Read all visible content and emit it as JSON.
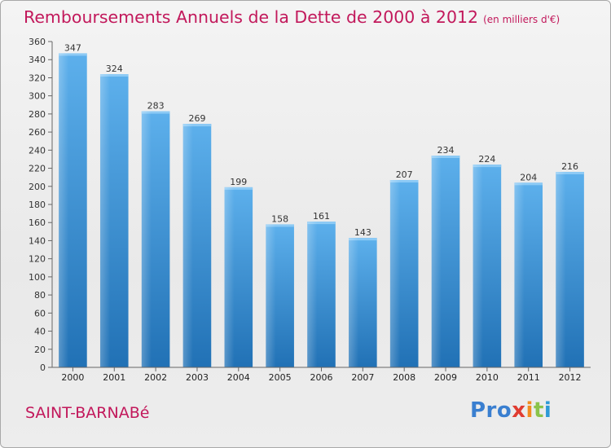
{
  "chart_data": {
    "type": "bar",
    "title": "Remboursements Annuels de la Dette de 2000 à 2012",
    "subtitle": "(en milliers d'€)",
    "categories": [
      "2000",
      "2001",
      "2002",
      "2003",
      "2004",
      "2005",
      "2006",
      "2007",
      "2008",
      "2009",
      "2010",
      "2011",
      "2012"
    ],
    "values": [
      347,
      324,
      283,
      269,
      199,
      158,
      161,
      143,
      207,
      234,
      224,
      204,
      216
    ],
    "ylim": [
      0,
      360
    ],
    "yticks": [
      0,
      20,
      40,
      60,
      80,
      100,
      120,
      140,
      160,
      180,
      200,
      220,
      240,
      260,
      280,
      300,
      320,
      340,
      360
    ],
    "grid": false,
    "bar_color": "#4a9fe0",
    "bar_color_dark": "#2171b5"
  },
  "footer": {
    "commune": "SAINT-BARNABé",
    "logo": [
      "Pro",
      "x",
      "i",
      "t",
      "i"
    ]
  },
  "colors": {
    "title": "#c2185b"
  }
}
